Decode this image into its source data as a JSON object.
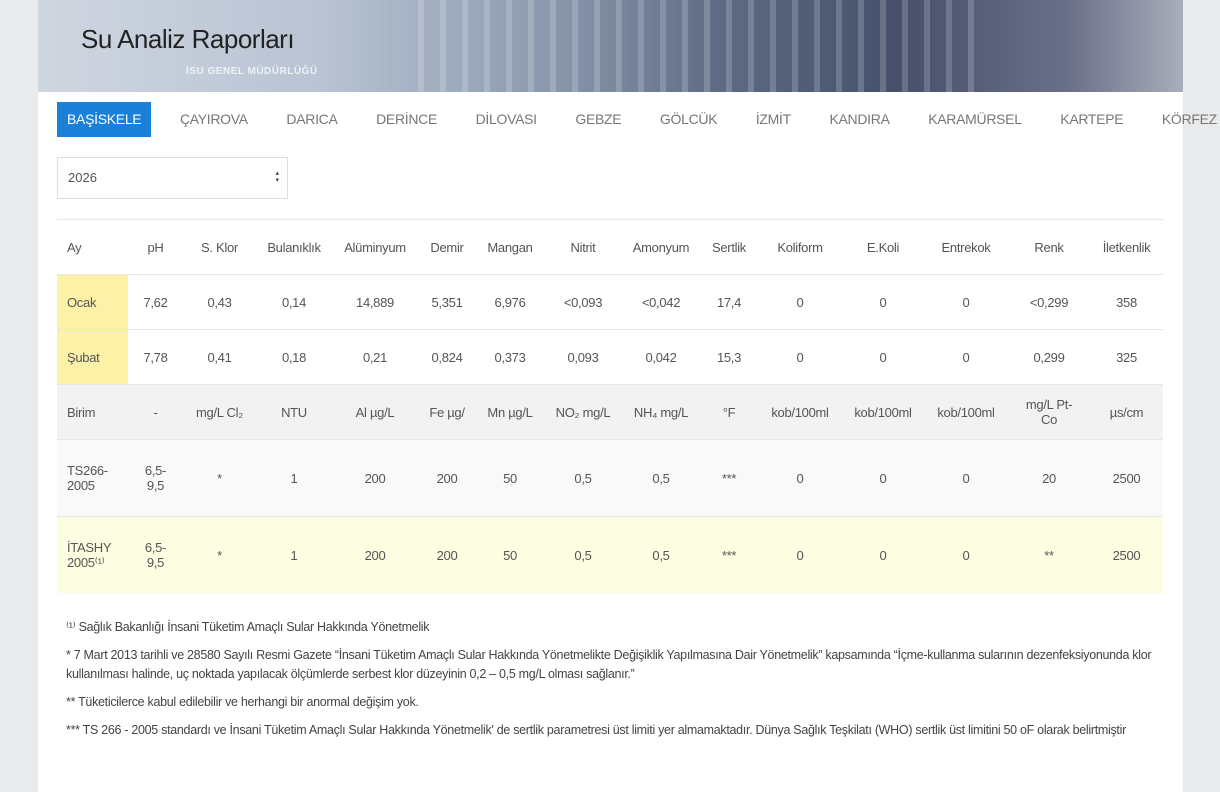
{
  "header": {
    "title": "Su Analiz Raporları",
    "sign": "İSU GENEL MÜDÜRLÜĞÜ"
  },
  "tabs": [
    "BAŞİSKELE",
    "ÇAYIROVA",
    "DARICA",
    "DERİNCE",
    "DİLOVASI",
    "GEBZE",
    "GÖLCÜK",
    "İZMİT",
    "KANDIRA",
    "KARAMÜRSEL",
    "KARTEPE",
    "KÖRFEZ"
  ],
  "year_select": "2026",
  "table": {
    "header": [
      "Ay",
      "pH",
      "S. Klor",
      "Bulanıklık",
      "Alüminyum",
      "Demir",
      "Mangan",
      "Nitrit",
      "Amonyum",
      "Sertlik",
      "Koliform",
      "E.Koli",
      "Entrekok",
      "Renk",
      "İletkenlik"
    ],
    "rows": [
      [
        "Ocak",
        "7,62",
        "0,43",
        "0,14",
        "14,889",
        "5,351",
        "6,976",
        "<0,093",
        "<0,042",
        "17,4",
        "0",
        "0",
        "0",
        "<0,299",
        "358"
      ],
      [
        "Şubat",
        "7,78",
        "0,41",
        "0,18",
        "0,21",
        "0,824",
        "0,373",
        "0,093",
        "0,042",
        "15,3",
        "0",
        "0",
        "0",
        "0,299",
        "325"
      ],
      [
        "Birim",
        "-",
        "mg/L Cl₂",
        "NTU",
        "Al µg/L",
        "Fe µg/",
        "Mn µg/L",
        "NO₂ mg/L",
        "NH₄ mg/L",
        "°F",
        "kob/100ml",
        "kob/100ml",
        "kob/100ml",
        "mg/L Pt-Co",
        "µs/cm"
      ],
      [
        "TS266-2005",
        "6,5-9,5",
        "*",
        "1",
        "200",
        "200",
        "50",
        "0,5",
        "0,5",
        "***",
        "0",
        "0",
        "0",
        "20",
        "2500"
      ],
      [
        "İTASHY 2005⁽¹⁾",
        "6,5-9,5",
        "*",
        "1",
        "200",
        "200",
        "50",
        "0,5",
        "0,5",
        "***",
        "0",
        "0",
        "0",
        "**",
        "2500"
      ]
    ]
  },
  "footnotes": [
    "⁽¹⁾ Sağlık Bakanlığı İnsani Tüketim Amaçlı Sular Hakkında Yönetmelik",
    "* 7 Mart 2013 tarihli ve 28580 Sayılı Resmi Gazete “İnsani Tüketim Amaçlı Sular Hakkında Yönetmelikte Değişiklik Yapılmasına Dair Yönetmelik” kapsamında “İçme-kullanma sularının dezenfeksiyonunda klor kullanılması halinde, uç noktada yapılacak ölçümlerde serbest klor düzeyinin 0,2 – 0,5 mg/L olması sağlanır.”",
    "** Tüketicilerce kabul edilebilir ve herhangi bir anormal değişim yok.",
    "*** TS 266 - 2005 standardı ve İnsani Tüketim Amaçlı Sular Hakkında Yönetmelik' de sertlik parametresi üst limiti yer almamaktadır. Dünya Sağlık Teşkilatı (WHO) sertlik üst limitini 50 oF olarak belirtmiştir"
  ]
}
